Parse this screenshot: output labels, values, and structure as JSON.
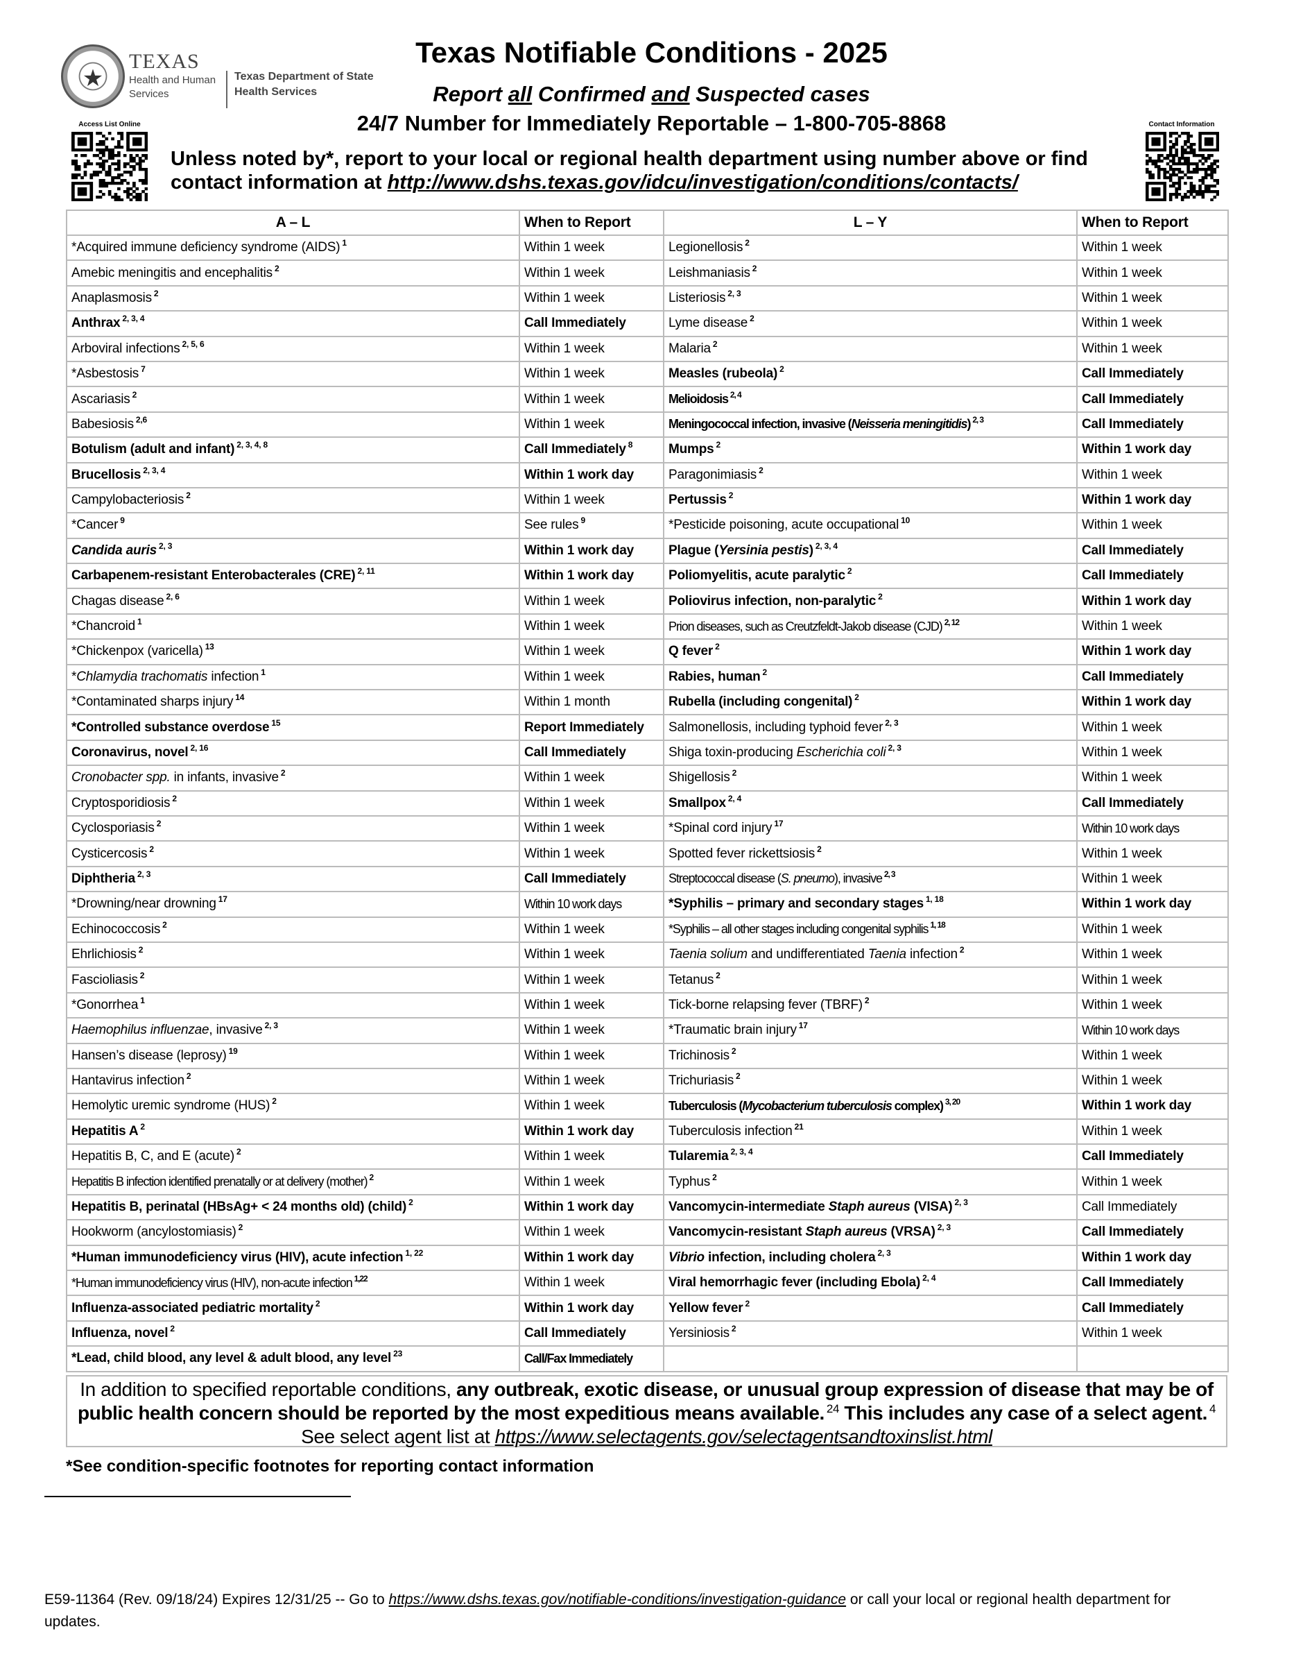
{
  "logo": {
    "line1": "TEXAS",
    "line2": "Health and Human Services",
    "line3": "Texas Department of State Health Services"
  },
  "header": {
    "title": "Texas Notifiable Conditions - 2025",
    "subtitle_parts": [
      "Report ",
      "all",
      " Confirmed ",
      "and",
      " Suspected cases"
    ],
    "phone_line": "24/7 Number for Immediately Reportable – 1-800-705-8868",
    "unless_text": "Unless noted by*, report to your local or regional health department using number above or find contact information at ",
    "contacts_link": "http://www.dshs.texas.gov/idcu/investigation/conditions/contacts/",
    "qr_left_label": "Access List Online",
    "qr_right_label": "Contact Information"
  },
  "table": {
    "headers": [
      "A – L",
      "When to Report",
      "L – Y",
      "When to Report"
    ],
    "left": [
      {
        "name": "*Acquired immune deficiency syndrome (AIDS)",
        "sup": "1",
        "when": "Within 1 week"
      },
      {
        "name": "Amebic meningitis and encephalitis",
        "sup": "2",
        "when": "Within 1 week"
      },
      {
        "name": "Anaplasmosis",
        "sup": "2",
        "when": "Within 1 week"
      },
      {
        "name": "Anthrax",
        "sup": "2, 3, 4",
        "bold": true,
        "when": "Call Immediately",
        "wbold": true
      },
      {
        "name": "Arboviral infections",
        "sup": "2, 5, 6",
        "when": "Within 1 week"
      },
      {
        "name": "*Asbestosis",
        "sup": "7",
        "when": "Within 1 week"
      },
      {
        "name": "Ascariasis",
        "sup": "2",
        "when": "Within 1 week"
      },
      {
        "name": "Babesiosis",
        "sup": "2,6",
        "when": "Within 1 week"
      },
      {
        "name": "Botulism (adult and infant)",
        "sup": "2, 3, 4, 8",
        "bold": true,
        "when": "Call Immediately",
        "wsup": "8",
        "wbold": true
      },
      {
        "name": "Brucellosis",
        "sup": "2, 3, 4",
        "bold": true,
        "when": "Within 1 work day",
        "wbold": true
      },
      {
        "name": "Campylobacteriosis",
        "sup": "2",
        "when": "Within 1 week"
      },
      {
        "name": "*Cancer",
        "sup": "9",
        "when": "See rules",
        "wsup": "9"
      },
      {
        "name": "_Candida auris_",
        "sup": "2, 3",
        "bold": true,
        "when": "Within 1 work day",
        "wbold": true
      },
      {
        "name": "Carbapenem-resistant Enterobacterales (CRE)",
        "sup": "2, 11",
        "bold": true,
        "when": "Within 1 work day",
        "wbold": true
      },
      {
        "name": "Chagas disease",
        "sup": "2, 6",
        "when": "Within 1 week"
      },
      {
        "name": "*Chancroid",
        "sup": "1",
        "when": "Within 1 week"
      },
      {
        "name": "*Chickenpox (varicella)",
        "sup": "13",
        "when": "Within 1 week"
      },
      {
        "name": "*_Chlamydia trachomatis_ infection",
        "sup": "1",
        "when": "Within 1 week"
      },
      {
        "name": "*Contaminated sharps injury",
        "sup": "14",
        "when": "Within 1 month"
      },
      {
        "name": "*Controlled substance overdose",
        "sup": "15",
        "bold": true,
        "when": "Report Immediately",
        "wbold": true
      },
      {
        "name": "Coronavirus, novel",
        "sup": "2, 16",
        "bold": true,
        "when": "Call Immediately",
        "wbold": true
      },
      {
        "name": "_Cronobacter spp._ in infants, invasive",
        "sup": "2",
        "when": "Within 1 week"
      },
      {
        "name": "Cryptosporidiosis",
        "sup": "2",
        "when": "Within 1 week"
      },
      {
        "name": "Cyclosporiasis",
        "sup": "2",
        "when": "Within 1 week"
      },
      {
        "name": "Cysticercosis",
        "sup": "2",
        "when": "Within 1 week"
      },
      {
        "name": "Diphtheria",
        "sup": "2, 3",
        "bold": true,
        "when": "Call Immediately",
        "wbold": true
      },
      {
        "name": "*Drowning/near drowning",
        "sup": "17",
        "when": "Within 10 work days",
        "wcond": true
      },
      {
        "name": "Echinococcosis",
        "sup": "2",
        "when": "Within 1 week"
      },
      {
        "name": "Ehrlichiosis",
        "sup": "2",
        "when": "Within 1 week"
      },
      {
        "name": "Fascioliasis",
        "sup": "2",
        "when": "Within 1 week"
      },
      {
        "name": "*Gonorrhea",
        "sup": "1",
        "when": "Within 1 week"
      },
      {
        "name": "_Haemophilus influenzae_, invasive",
        "sup": "2, 3",
        "when": "Within 1 week"
      },
      {
        "name": "Hansen’s disease (leprosy)",
        "sup": "19",
        "when": "Within 1 week"
      },
      {
        "name": "Hantavirus infection",
        "sup": "2",
        "when": "Within 1 week"
      },
      {
        "name": "Hemolytic uremic syndrome (HUS)",
        "sup": "2",
        "when": "Within 1 week"
      },
      {
        "name": "Hepatitis A",
        "sup": "2",
        "bold": true,
        "when": "Within 1 work day",
        "wbold": true
      },
      {
        "name": "Hepatitis B, C, and E (acute)",
        "sup": "2",
        "when": "Within 1 week"
      },
      {
        "name": "Hepatitis B infection identified prenatally or at delivery (mother)",
        "sup": "2",
        "cond": true,
        "when": "Within 1 week"
      },
      {
        "name": "Hepatitis B, perinatal (HBsAg+ < 24 months old) (child)",
        "sup": "2",
        "bold": true,
        "when": "Within 1 work day",
        "wbold": true
      },
      {
        "name": "Hookworm (ancylostomiasis)",
        "sup": "2",
        "when": "Within 1 week"
      },
      {
        "name": "*Human immunodeficiency virus (HIV), acute infection",
        "sup": "1, 22",
        "bold": true,
        "when": "Within 1 work day",
        "wbold": true
      },
      {
        "name": "*Human immunodeficiency virus (HIV), non-acute infection",
        "sup": "1,22",
        "cond": true,
        "when": "Within 1 week"
      },
      {
        "name": "Influenza-associated pediatric mortality",
        "sup": "2",
        "bold": true,
        "when": "Within 1 work day",
        "wbold": true
      },
      {
        "name": "Influenza, novel",
        "sup": "2",
        "bold": true,
        "when": "Call Immediately",
        "wbold": true
      },
      {
        "name": "*Lead, child blood, any level & adult blood, any level",
        "sup": "23",
        "bold": true,
        "when": "Call/Fax Immediately",
        "wbold": true,
        "wcond": true
      }
    ],
    "right": [
      {
        "name": "Legionellosis",
        "sup": "2",
        "when": "Within 1 week"
      },
      {
        "name": "Leishmaniasis",
        "sup": "2",
        "when": "Within 1 week"
      },
      {
        "name": "Listeriosis",
        "sup": "2, 3",
        "when": "Within 1 week"
      },
      {
        "name": "Lyme disease",
        "sup": "2",
        "when": "Within 1 week"
      },
      {
        "name": "Malaria",
        "sup": "2",
        "when": "Within 1 week"
      },
      {
        "name": "Measles (rubeola)",
        "sup": "2",
        "bold": true,
        "when": "Call Immediately",
        "wbold": true
      },
      {
        "name": "Melioidosis",
        "sup": "2, 4",
        "bold": true,
        "cond": true,
        "when": "Call Immediately",
        "wbold": true
      },
      {
        "name": "Meningococcal infection, invasive (_Neisseria meningitidis_)",
        "sup": "2, 3",
        "bold": true,
        "cond": true,
        "when": "Call Immediately",
        "wbold": true
      },
      {
        "name": "Mumps",
        "sup": "2",
        "bold": true,
        "when": "Within 1 work day",
        "wbold": true
      },
      {
        "name": "Paragonimiasis",
        "sup": "2",
        "when": "Within 1 week"
      },
      {
        "name": "Pertussis",
        "sup": "2",
        "bold": true,
        "when": "Within 1 work day",
        "wbold": true
      },
      {
        "name": "*Pesticide poisoning, acute occupational",
        "sup": "10",
        "when": "Within 1 week"
      },
      {
        "name": "Plague (_Yersinia pestis_)",
        "sup": "2, 3, 4",
        "bold": true,
        "when": "Call Immediately",
        "wbold": true
      },
      {
        "name": "Poliomyelitis, acute paralytic",
        "sup": "2",
        "bold": true,
        "when": "Call Immediately",
        "wbold": true
      },
      {
        "name": "Poliovirus infection, non-paralytic",
        "sup": "2",
        "bold": true,
        "when": "Within 1 work day",
        "wbold": true
      },
      {
        "name": "Prion diseases, such as Creutzfeldt-Jakob disease (CJD)",
        "sup": "2, 12",
        "cond": true,
        "when": "Within 1 week"
      },
      {
        "name": "Q fever",
        "sup": "2",
        "bold": true,
        "when": "Within 1 work day",
        "wbold": true
      },
      {
        "name": "Rabies, human",
        "sup": "2",
        "bold": true,
        "when": "Call Immediately",
        "wbold": true
      },
      {
        "name": "Rubella (including congenital)",
        "sup": "2",
        "bold": true,
        "when": "Within 1 work day",
        "wbold": true
      },
      {
        "name": "Salmonellosis, including typhoid fever",
        "sup": "2, 3",
        "when": "Within 1 week"
      },
      {
        "name": "Shiga toxin-producing _Escherichia coli_",
        "sup": "2, 3",
        "when": "Within 1 week"
      },
      {
        "name": "Shigellosis",
        "sup": "2",
        "when": "Within 1 week"
      },
      {
        "name": "Smallpox",
        "sup": "2, 4",
        "bold": true,
        "when": "Call Immediately",
        "wbold": true
      },
      {
        "name": "*Spinal cord injury",
        "sup": "17",
        "when": "Within 10 work days",
        "wcond": true
      },
      {
        "name": "Spotted fever rickettsiosis",
        "sup": "2",
        "when": "Within 1 week"
      },
      {
        "name": "Streptococcal disease (_S. pneumo_), invasive",
        "sup": "2, 3",
        "cond": true,
        "when": "Within 1 week"
      },
      {
        "name": "*Syphilis – primary and secondary stages",
        "sup": "1, 18",
        "bold": true,
        "when": "Within 1 work day",
        "wbold": true
      },
      {
        "name": "*Syphilis – all other stages including congenital syphilis",
        "sup": "1, 18",
        "cond": true,
        "when": "Within 1 week"
      },
      {
        "name": "_Taenia solium_ and undifferentiated _Taenia_ infection",
        "sup": "2",
        "when": "Within 1 week"
      },
      {
        "name": "Tetanus",
        "sup": "2",
        "when": "Within 1 week"
      },
      {
        "name": "Tick-borne relapsing fever (TBRF)",
        "sup": "2",
        "when": "Within 1 week"
      },
      {
        "name": "*Traumatic brain injury",
        "sup": "17",
        "when": "Within 10 work days",
        "wcond": true
      },
      {
        "name": "Trichinosis",
        "sup": "2",
        "when": "Within 1 week"
      },
      {
        "name": "Trichuriasis",
        "sup": "2",
        "when": "Within 1 week"
      },
      {
        "name": "Tuberculosis (_Mycobacterium tuberculosis_ complex)",
        "sup": "3, 20",
        "bold": true,
        "cond": true,
        "when": "Within 1 work day",
        "wbold": true
      },
      {
        "name": "Tuberculosis infection",
        "sup": "21",
        "when": "Within 1 week"
      },
      {
        "name": "Tularemia",
        "sup": "2, 3, 4",
        "bold": true,
        "when": "Call Immediately",
        "wbold": true
      },
      {
        "name": "Typhus",
        "sup": "2",
        "when": "Within 1 week"
      },
      {
        "name": "Vancomycin-intermediate _Staph aureus_ (VISA)",
        "sup": "2, 3",
        "bold": true,
        "when": "Call Immediately"
      },
      {
        "name": "Vancomycin-resistant _Staph aureus_ (VRSA)",
        "sup": "2, 3",
        "bold": true,
        "when": "Call Immediately",
        "wbold": true
      },
      {
        "name": "_Vibrio_ infection, including cholera",
        "sup": "2, 3",
        "bold": true,
        "when": "Within 1 work day",
        "wbold": true
      },
      {
        "name": "Viral hemorrhagic fever (including Ebola)",
        "sup": "2, 4",
        "bold": true,
        "when": "Call Immediately",
        "wbold": true
      },
      {
        "name": "Yellow fever",
        "sup": "2",
        "bold": true,
        "when": "Call Immediately",
        "wbold": true
      },
      {
        "name": "Yersiniosis",
        "sup": "2",
        "when": "Within 1 week"
      }
    ]
  },
  "extra": {
    "intro": "In addition to specified reportable conditions, ",
    "bold_text": "any outbreak, exotic disease, or unusual group expression of disease that may be of public health concern should be reported by the most expeditious means available.",
    "sup1": "24",
    "bold_text2": " This includes any case of a select agent.",
    "sup2": "4",
    "select_text": "See select agent list at ",
    "select_link": "https://www.selectagents.gov/selectagentsandtoxinslist.html"
  },
  "see_footnotes": "*See condition-specific footnotes for reporting contact information",
  "footer": {
    "prefix": "E59-11364 (Rev. 09/18/24)   Expires 12/31/25 -- Go to ",
    "link": "https://www.dshs.texas.gov/notifiable-conditions/investigation-guidance",
    "suffix": " or call your local or regional health department for updates."
  }
}
